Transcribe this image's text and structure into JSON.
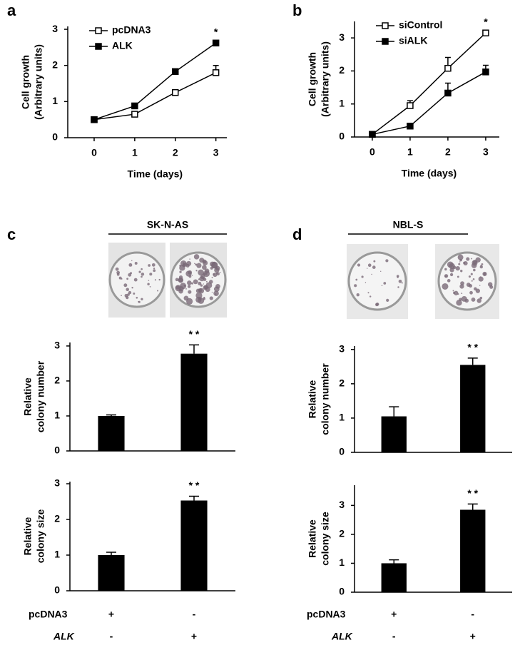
{
  "chart_data": [
    {
      "type": "line",
      "panel": "a",
      "xlabel": "Time (days)",
      "ylabel": [
        "Cell growth",
        "(Arbitrary units)"
      ],
      "x": [
        0,
        1,
        2,
        3
      ],
      "xlim": [
        -0.65,
        3.27
      ],
      "xticks": [
        0,
        1,
        2,
        3
      ],
      "ylim": [
        0,
        3.08
      ],
      "yticks": [
        0,
        1,
        2,
        3
      ],
      "series": [
        {
          "name": "pcDNA3",
          "color": "#000000",
          "fill": "#ffffff",
          "values": [
            0.5,
            0.65,
            1.25,
            1.8
          ],
          "errors": [
            0.05,
            0.05,
            0.05,
            0.2
          ]
        },
        {
          "name": "ALK",
          "color": "#000000",
          "fill": "#000000",
          "values": [
            0.5,
            0.88,
            1.83,
            2.62
          ],
          "errors": [
            0.05,
            0.05,
            0.03,
            0.05
          ]
        }
      ],
      "annotations": [
        null,
        null,
        null,
        "*"
      ]
    },
    {
      "type": "line",
      "panel": "b",
      "xlabel": "Time (days)",
      "ylabel": [
        "Cell growth",
        "(Arbitrary units)"
      ],
      "x": [
        0,
        1,
        2,
        3
      ],
      "xlim": [
        -0.47,
        3.36
      ],
      "xticks": [
        0,
        1,
        2,
        3
      ],
      "ylim": [
        0,
        3.5
      ],
      "yticks": [
        0,
        1,
        2,
        3
      ],
      "series": [
        {
          "name": "siControl",
          "color": "#000000",
          "fill": "#ffffff",
          "values": [
            0.08,
            0.95,
            2.08,
            3.15
          ],
          "errors": [
            0.02,
            0.15,
            0.33,
            0.05
          ]
        },
        {
          "name": "siALK",
          "color": "#000000",
          "fill": "#000000",
          "values": [
            0.08,
            0.33,
            1.33,
            1.97
          ],
          "errors": [
            0.02,
            0.05,
            0.3,
            0.2
          ]
        }
      ],
      "annotations": [
        null,
        null,
        null,
        "*"
      ]
    },
    {
      "type": "bar",
      "panel": "c",
      "title": "SK-N-AS",
      "ylabel": [
        "Relative",
        "colony number"
      ],
      "color": "#000000",
      "values": [
        1.0,
        2.78
      ],
      "errors": [
        0.03,
        0.25
      ],
      "ylim": [
        0,
        3.1
      ],
      "yticks": [
        0,
        1,
        2,
        3
      ],
      "annotations": [
        null,
        "* *"
      ]
    },
    {
      "type": "bar",
      "ylabel": [
        "Relative",
        "colony size"
      ],
      "color": "#000000",
      "values": [
        1.0,
        2.53
      ],
      "errors": [
        0.08,
        0.12
      ],
      "ylim": [
        0,
        3.06
      ],
      "yticks": [
        0,
        1,
        2,
        3
      ],
      "annotations": [
        null,
        "* *"
      ],
      "conditions": [
        {
          "name": "pcDNA3",
          "values": [
            "+",
            "-"
          ]
        },
        {
          "name": "ALK",
          "values": [
            "-",
            "+"
          ]
        }
      ]
    },
    {
      "type": "bar",
      "panel": "d",
      "title": "NBL-S",
      "ylabel": [
        "Relative",
        "colony number"
      ],
      "color": "#000000",
      "values": [
        1.05,
        2.55
      ],
      "errors": [
        0.28,
        0.2
      ],
      "ylim": [
        0,
        3.1
      ],
      "yticks": [
        0,
        1,
        2,
        3
      ],
      "annotations": [
        null,
        "* *"
      ]
    },
    {
      "type": "bar",
      "ylabel": [
        "Relative",
        "colony size"
      ],
      "color": "#000000",
      "values": [
        1.0,
        2.85
      ],
      "errors": [
        0.12,
        0.2
      ],
      "ylim": [
        0,
        3.7
      ],
      "yticks": [
        0,
        1,
        2,
        3
      ],
      "annotations": [
        null,
        "* *"
      ],
      "conditions": [
        {
          "name": "pcDNA3",
          "values": [
            "+",
            "-"
          ]
        },
        {
          "name": "ALK",
          "values": [
            "-",
            "+"
          ]
        }
      ]
    }
  ]
}
